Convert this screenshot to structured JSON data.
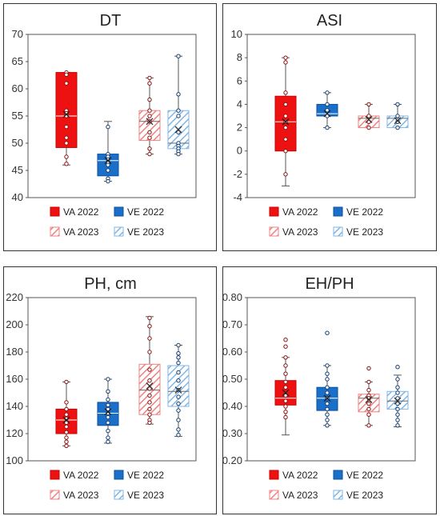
{
  "colors": {
    "va": "#ee1111",
    "ve": "#1a6fc9",
    "va_hatch": "#f08080",
    "ve_hatch": "#7fb6e6"
  },
  "chart_data": [
    {
      "type": "box",
      "title": "DT",
      "ylim": [
        40,
        70
      ],
      "yticks": [
        "40",
        "45",
        "50",
        "55",
        "60",
        "65",
        "70"
      ],
      "legend": [
        "VA 2022",
        "VE 2022",
        "VA 2023",
        "VE 2023"
      ],
      "series": [
        {
          "name": "VA 2022",
          "min": 46,
          "q1": 49.2,
          "median": 55,
          "q3": 63,
          "max": 63,
          "mean": 55.3,
          "points": [
            63,
            62.6,
            61,
            56,
            55.5,
            55,
            53,
            51,
            50,
            47.5,
            46.2
          ]
        },
        {
          "name": "VE 2022",
          "min": 43,
          "q1": 44,
          "median": 46.8,
          "q3": 48,
          "max": 54,
          "mean": 46.8,
          "points": [
            53,
            48,
            47.5,
            47,
            46.5,
            46,
            45,
            43.5,
            43
          ]
        },
        {
          "name": "VA 2023",
          "min": 48,
          "q1": 50.5,
          "median": 54,
          "q3": 56,
          "max": 62,
          "mean": 54,
          "points": [
            62,
            61,
            58,
            56,
            55,
            54,
            52,
            51,
            49,
            48
          ]
        },
        {
          "name": "VE 2023",
          "min": 48,
          "q1": 49,
          "median": 50,
          "q3": 56,
          "max": 66,
          "mean": 52.5,
          "points": [
            66,
            59,
            56,
            55,
            52,
            50,
            49.5,
            49,
            48.5,
            48
          ]
        }
      ]
    },
    {
      "type": "box",
      "title": "ASI",
      "ylim": [
        -4,
        10
      ],
      "yticks": [
        "-4",
        "-2",
        "0",
        "2",
        "4",
        "6",
        "8",
        "10"
      ],
      "legend": [
        "VA 2022",
        "VE 2022",
        "VA 2023",
        "VE 2023"
      ],
      "series": [
        {
          "name": "VA 2022",
          "min": -3,
          "q1": 0,
          "median": 2.5,
          "q3": 4.7,
          "max": 8,
          "mean": 2.5,
          "points": [
            8,
            7.6,
            5,
            4,
            3,
            2.5,
            2,
            1,
            0,
            -2
          ]
        },
        {
          "name": "VE 2022",
          "min": 2,
          "q1": 3,
          "median": 3.2,
          "q3": 4,
          "max": 5,
          "mean": 3.2,
          "points": [
            5,
            4,
            3.5,
            3,
            2
          ]
        },
        {
          "name": "VA 2023",
          "min": 2,
          "q1": 2,
          "median": 2.8,
          "q3": 3,
          "max": 4,
          "mean": 2.7,
          "points": [
            4,
            3,
            2.5,
            2
          ]
        },
        {
          "name": "VE 2023",
          "min": 2,
          "q1": 2,
          "median": 2.8,
          "q3": 3,
          "max": 4,
          "mean": 2.6,
          "points": [
            4,
            3,
            2.5,
            2
          ]
        }
      ]
    },
    {
      "type": "box",
      "title": "PH, cm",
      "ylim": [
        100,
        220
      ],
      "yticks": [
        "100",
        "120",
        "140",
        "160",
        "180",
        "200",
        "220"
      ],
      "legend": [
        "VA 2022",
        "VE 2022",
        "VA 2023",
        "VE 2023"
      ],
      "series": [
        {
          "name": "VA 2022",
          "min": 111,
          "q1": 120,
          "median": 130,
          "q3": 138,
          "max": 158,
          "mean": 130,
          "points": [
            158,
            143,
            138,
            134,
            131,
            128,
            125,
            121,
            117,
            114,
            111
          ]
        },
        {
          "name": "VE 2022",
          "min": 113,
          "q1": 126,
          "median": 135,
          "q3": 143,
          "max": 160,
          "mean": 136,
          "points": [
            160,
            151,
            145,
            141,
            138,
            135,
            132,
            128,
            122,
            117,
            114
          ]
        },
        {
          "name": "VA 2023",
          "min": 127,
          "q1": 134,
          "median": 152,
          "q3": 171,
          "max": 206,
          "mean": 155,
          "points": [
            205,
            199,
            190,
            180,
            167,
            159,
            153,
            148,
            143,
            138,
            134,
            130,
            128
          ]
        },
        {
          "name": "VE 2023",
          "min": 118,
          "q1": 140,
          "median": 151,
          "q3": 170,
          "max": 185,
          "mean": 152,
          "points": [
            185,
            179,
            176,
            172,
            165,
            159,
            152,
            147,
            142,
            137,
            130,
            123,
            119
          ]
        }
      ]
    },
    {
      "type": "box",
      "title": "EH/PH",
      "ylim": [
        0.2,
        0.8
      ],
      "yticks": [
        "0.20",
        "0.30",
        "0.40",
        "0.50",
        "0.60",
        "0.70",
        "0.80"
      ],
      "legend": [
        "VA 2022",
        "VE 2022",
        "VA 2023",
        "VE 2023"
      ],
      "series": [
        {
          "name": "VA 2022",
          "min": 0.295,
          "q1": 0.405,
          "median": 0.43,
          "q3": 0.495,
          "max": 0.58,
          "mean": 0.45,
          "points": [
            0.645,
            0.62,
            0.58,
            0.55,
            0.52,
            0.49,
            0.47,
            0.44,
            0.42,
            0.4,
            0.38,
            0.36
          ]
        },
        {
          "name": "VE 2022",
          "min": 0.33,
          "q1": 0.385,
          "median": 0.43,
          "q3": 0.47,
          "max": 0.55,
          "mean": 0.43,
          "points": [
            0.67,
            0.55,
            0.52,
            0.5,
            0.47,
            0.45,
            0.43,
            0.41,
            0.39,
            0.37,
            0.35,
            0.33
          ]
        },
        {
          "name": "VA 2023",
          "min": 0.33,
          "q1": 0.38,
          "median": 0.43,
          "q3": 0.445,
          "max": 0.49,
          "mean": 0.425,
          "points": [
            0.54,
            0.49,
            0.46,
            0.44,
            0.43,
            0.41,
            0.39,
            0.37,
            0.33
          ]
        },
        {
          "name": "VE 2023",
          "min": 0.325,
          "q1": 0.39,
          "median": 0.42,
          "q3": 0.455,
          "max": 0.515,
          "mean": 0.42,
          "points": [
            0.545,
            0.5,
            0.47,
            0.45,
            0.43,
            0.41,
            0.39,
            0.37,
            0.35,
            0.33
          ]
        }
      ]
    }
  ]
}
